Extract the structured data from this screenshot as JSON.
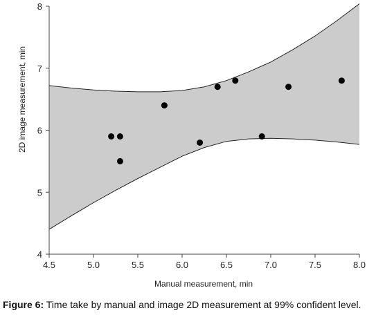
{
  "chart_data": {
    "type": "scatter",
    "title": "",
    "xlabel": "Manual measurement, min",
    "ylabel": "2D image measurement, min",
    "xlim": [
      4.5,
      8.0
    ],
    "ylim": [
      4,
      8
    ],
    "x_ticks": [
      "4.5",
      "5.0",
      "5.5",
      "6.0",
      "6.5",
      "7.0",
      "7.5",
      "8.0"
    ],
    "y_ticks": [
      "4",
      "5",
      "6",
      "7",
      "8"
    ],
    "grid": false,
    "legend": "none",
    "band_color": "#cccccc",
    "point_color": "#000000",
    "points": [
      {
        "x": 5.2,
        "y": 5.9
      },
      {
        "x": 5.3,
        "y": 5.9
      },
      {
        "x": 5.3,
        "y": 5.5
      },
      {
        "x": 5.8,
        "y": 6.4
      },
      {
        "x": 6.2,
        "y": 5.8
      },
      {
        "x": 6.4,
        "y": 6.7
      },
      {
        "x": 6.6,
        "y": 6.8
      },
      {
        "x": 6.9,
        "y": 5.9
      },
      {
        "x": 7.2,
        "y": 6.7
      },
      {
        "x": 7.8,
        "y": 6.8
      }
    ],
    "confidence_band": {
      "level": "99%",
      "x": [
        4.5,
        4.75,
        5.0,
        5.25,
        5.5,
        5.75,
        6.0,
        6.25,
        6.5,
        6.75,
        7.0,
        7.25,
        7.5,
        7.75,
        8.0
      ],
      "upper": [
        6.72,
        6.68,
        6.65,
        6.63,
        6.62,
        6.62,
        6.64,
        6.7,
        6.8,
        6.94,
        7.1,
        7.3,
        7.52,
        7.77,
        8.04
      ],
      "lower": [
        4.4,
        4.62,
        4.83,
        5.03,
        5.22,
        5.4,
        5.58,
        5.72,
        5.82,
        5.86,
        5.87,
        5.86,
        5.84,
        5.81,
        5.77
      ]
    }
  },
  "caption": {
    "label": "Figure 6:",
    "text": " Time take by manual and image 2D measurement at 99% confident level."
  }
}
